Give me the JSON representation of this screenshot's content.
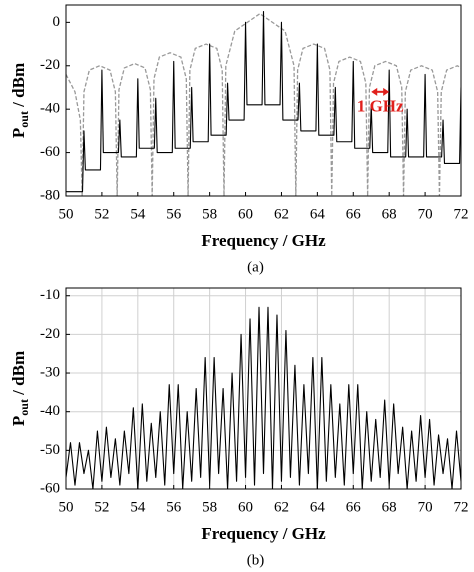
{
  "chart_data": [
    {
      "type": "line",
      "xlabel": "Frequency / GHz",
      "ylabel": [
        "P",
        "out",
        " / dBm"
      ],
      "caption": "(a)",
      "xlim": [
        50,
        72
      ],
      "ylim": [
        -80,
        8
      ],
      "xticks": [
        50,
        52,
        54,
        56,
        58,
        60,
        62,
        64,
        66,
        68,
        70,
        72
      ],
      "yticks": [
        -80,
        -60,
        -40,
        -20,
        0
      ],
      "grid": false,
      "annotation": {
        "text": "1 GHz",
        "color": "#e0201c"
      },
      "series": [
        {
          "color": "#999999",
          "dashed": true,
          "x": [
            50,
            50.5,
            50.8,
            50.9,
            51.0,
            51.3,
            51.875,
            52.45,
            52.75,
            52.85,
            52.95,
            53.25,
            53.825,
            54.4,
            54.7,
            54.8,
            54.9,
            55.2,
            55.8,
            56.4,
            56.7,
            56.8,
            56.9,
            57.2,
            57.8,
            58.4,
            58.7,
            58.8,
            58.9,
            59.4,
            60.8,
            62.2,
            62.7,
            62.8,
            62.9,
            63.2,
            63.8,
            64.4,
            64.7,
            64.8,
            64.9,
            65.2,
            65.8,
            66.4,
            66.7,
            66.8,
            66.9,
            67.2,
            67.8,
            68.4,
            68.7,
            68.8,
            68.9,
            69.2,
            69.8,
            70.4,
            70.7,
            70.8,
            70.9,
            71.2,
            71.8,
            72
          ],
          "values": [
            -24,
            -32,
            -45,
            -80,
            -32,
            -22,
            -20,
            -22,
            -32,
            -80,
            -31,
            -21,
            -19,
            -21,
            -31,
            -80,
            -26,
            -16,
            -14,
            -16,
            -26,
            -80,
            -22,
            -12,
            -10,
            -12,
            -22,
            -80,
            -20,
            -4,
            4,
            -4,
            -20,
            -80,
            -22,
            -12,
            -10,
            -12,
            -22,
            -80,
            -28,
            -18,
            -16,
            -18,
            -28,
            -80,
            -30,
            -20,
            -18,
            -20,
            -30,
            -80,
            -32,
            -22,
            -20,
            -22,
            -32,
            -80,
            -32,
            -22,
            -20,
            -21
          ]
        },
        {
          "color": "#000000",
          "dashed": false,
          "x": [
            50,
            50.92,
            51,
            51.08,
            51.92,
            52,
            52.08,
            52.92,
            53,
            53.08,
            53.92,
            54,
            54.08,
            54.92,
            55,
            55.08,
            55.92,
            56,
            56.08,
            56.92,
            57,
            57.08,
            57.92,
            58,
            58.08,
            58.92,
            59,
            59.08,
            59.92,
            60,
            60.08,
            60.92,
            61,
            61.08,
            61.92,
            62,
            62.08,
            62.92,
            63,
            63.08,
            63.92,
            64,
            64.08,
            64.92,
            65,
            65.08,
            65.92,
            66,
            66.08,
            66.92,
            67,
            67.08,
            67.92,
            68,
            68.08,
            68.92,
            69,
            69.08,
            69.92,
            70,
            70.08,
            70.92,
            71,
            71.08,
            71.92,
            72
          ],
          "values": [
            -78,
            -78,
            -50,
            -68,
            -68,
            -22,
            -60,
            -60,
            -45,
            -62,
            -62,
            -26,
            -58,
            -58,
            -35,
            -60,
            -60,
            -18,
            -58,
            -58,
            -30,
            -55,
            -55,
            -10,
            -52,
            -52,
            -28,
            -45,
            -45,
            0,
            -38,
            -38,
            5,
            -38,
            -38,
            0,
            -45,
            -45,
            -28,
            -50,
            -50,
            -10,
            -52,
            -52,
            -30,
            -55,
            -55,
            -18,
            -58,
            -58,
            -38,
            -60,
            -60,
            -22,
            -62,
            -62,
            -40,
            -62,
            -62,
            -24,
            -62,
            -62,
            -45,
            -65,
            -65,
            -30
          ]
        }
      ]
    },
    {
      "type": "line",
      "xlabel": "Frequency / GHz",
      "ylabel": [
        "P",
        "out",
        " / dBm"
      ],
      "caption": "(b)",
      "xlim": [
        50,
        72
      ],
      "ylim": [
        -60,
        -8
      ],
      "xticks": [
        50,
        52,
        54,
        56,
        58,
        60,
        62,
        64,
        66,
        68,
        70,
        72
      ],
      "yticks": [
        -60,
        -50,
        -40,
        -30,
        -20,
        -10
      ],
      "grid": true,
      "series": [
        {
          "color": "#000000",
          "dashed": false,
          "x": [
            50,
            50.25,
            50.5,
            50.75,
            51,
            51.25,
            51.5,
            51.75,
            52,
            52.25,
            52.5,
            52.75,
            53,
            53.25,
            53.5,
            53.75,
            54,
            54.25,
            54.5,
            54.75,
            55,
            55.25,
            55.5,
            55.75,
            56,
            56.25,
            56.5,
            56.75,
            57,
            57.25,
            57.5,
            57.75,
            58,
            58.25,
            58.5,
            58.75,
            59,
            59.25,
            59.5,
            59.75,
            60,
            60.25,
            60.5,
            60.75,
            61,
            61.25,
            61.5,
            61.75,
            62,
            62.25,
            62.5,
            62.75,
            63,
            63.25,
            63.5,
            63.75,
            64,
            64.25,
            64.5,
            64.75,
            65,
            65.25,
            65.5,
            65.75,
            66,
            66.25,
            66.5,
            66.75,
            67,
            67.25,
            67.5,
            67.75,
            68,
            68.25,
            68.5,
            68.75,
            69,
            69.25,
            69.5,
            69.75,
            70,
            70.25,
            70.5,
            70.75,
            71,
            71.25,
            71.5,
            71.75,
            72
          ],
          "values": [
            -57,
            -48,
            -59,
            -48,
            -56,
            -50,
            -60,
            -45,
            -58,
            -44,
            -57,
            -47,
            -59,
            -45,
            -56,
            -39,
            -60,
            -38,
            -58,
            -43,
            -57,
            -40,
            -59,
            -33,
            -56,
            -33,
            -60,
            -40,
            -58,
            -34,
            -57,
            -26,
            -59,
            -26,
            -56,
            -34,
            -60,
            -30,
            -58,
            -20,
            -57,
            -16,
            -59,
            -13,
            -56,
            -13,
            -60,
            -15,
            -58,
            -19,
            -57,
            -28,
            -59,
            -33,
            -56,
            -26,
            -60,
            -26,
            -58,
            -33,
            -57,
            -38,
            -59,
            -33,
            -56,
            -33,
            -60,
            -40,
            -58,
            -42,
            -57,
            -37,
            -59,
            -38,
            -56,
            -44,
            -60,
            -45,
            -58,
            -41,
            -57,
            -42,
            -59,
            -46,
            -56,
            -47,
            -60,
            -45,
            -58
          ]
        }
      ]
    }
  ]
}
